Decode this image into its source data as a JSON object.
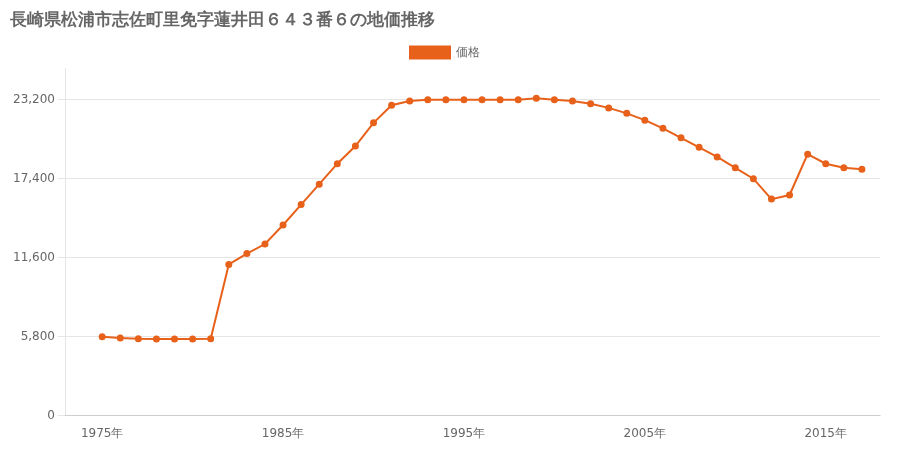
{
  "chart_data": {
    "type": "line",
    "title": "長崎県松浦市志佐町里免字蓮井田６４３番６の地価推移",
    "x": [
      1975,
      1976,
      1977,
      1978,
      1979,
      1980,
      1981,
      1982,
      1983,
      1984,
      1985,
      1986,
      1987,
      1988,
      1989,
      1990,
      1991,
      1992,
      1993,
      1994,
      1995,
      1996,
      1997,
      1998,
      1999,
      2000,
      2001,
      2002,
      2003,
      2004,
      2005,
      2006,
      2007,
      2008,
      2009,
      2010,
      2011,
      2012,
      2013,
      2014,
      2015,
      2016,
      2017
    ],
    "series": [
      {
        "name": "価格",
        "color": "#e8611a",
        "values": [
          5800,
          5700,
          5650,
          5630,
          5620,
          5630,
          5640,
          11100,
          11900,
          12600,
          14000,
          15500,
          17000,
          18500,
          19800,
          21500,
          22800,
          23100,
          23200,
          23200,
          23200,
          23200,
          23200,
          23200,
          23300,
          23200,
          23100,
          22900,
          22600,
          22200,
          21700,
          21100,
          20400,
          19700,
          19000,
          18200,
          17400,
          15900,
          16200,
          19200,
          18500,
          18200,
          18100
        ]
      }
    ],
    "xlim": [
      1973,
      2018
    ],
    "xticks": [
      {
        "value": 1975,
        "label": "1975年"
      },
      {
        "value": 1985,
        "label": "1985年"
      },
      {
        "value": 1995,
        "label": "1995年"
      },
      {
        "value": 2005,
        "label": "2005年"
      },
      {
        "value": 2015,
        "label": "2015年"
      }
    ],
    "ylim": [
      0,
      25500
    ],
    "yticks": [
      0,
      {
        "value": 5800,
        "label": "5,800"
      },
      {
        "value": 11600,
        "label": "11,600"
      },
      {
        "value": 17400,
        "label": "17,400"
      },
      {
        "value": 23200,
        "label": "23,200"
      }
    ],
    "grid": "y",
    "legend": "top",
    "marker": "circle"
  }
}
